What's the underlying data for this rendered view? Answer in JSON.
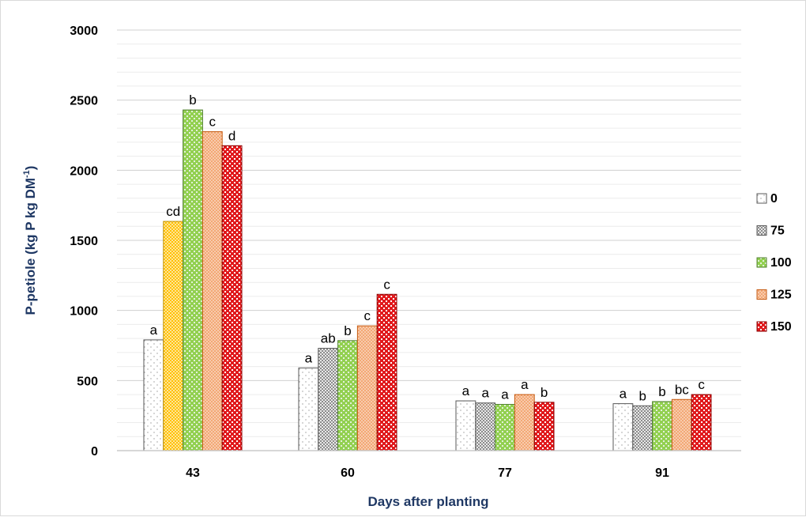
{
  "chart_data": {
    "type": "bar",
    "title": "",
    "xlabel": "Days after planting",
    "ylabel": "P-petiole (kg P kg DM",
    "ylabel_superscript": "-1",
    "ylabel_close": ")",
    "ylim": [
      0,
      3000
    ],
    "ytick_values": [
      0,
      500,
      1000,
      1500,
      2000,
      2500,
      3000
    ],
    "ytick_labels": [
      "0",
      "500",
      "1000",
      "1500",
      "2000",
      "2500",
      "3000"
    ],
    "minor_grid_step": 100,
    "grid": true,
    "legend_position": "right",
    "categories": [
      "43",
      "60",
      "77",
      "91"
    ],
    "series": [
      {
        "name": "0",
        "color": "#ffffff",
        "pattern": "sparse-dots",
        "values": [
          790,
          590,
          355,
          335
        ],
        "labels": [
          "a",
          "a",
          "a",
          "a"
        ]
      },
      {
        "name": "75",
        "color": "#d0d0d0",
        "pattern": "checker-gray",
        "values": [
          1635,
          730,
          340,
          320
        ],
        "labels": [
          "cd",
          "ab",
          "a",
          "b"
        ]
      },
      {
        "name": "100",
        "color": "#92d050",
        "pattern": "checker-green",
        "values": [
          2430,
          785,
          330,
          350
        ],
        "labels": [
          "b",
          "b",
          "a",
          "b"
        ]
      },
      {
        "name": "125",
        "color": "#f4b183",
        "pattern": "dotted-orange",
        "values": [
          2275,
          890,
          400,
          365
        ],
        "labels": [
          "c",
          "c",
          "a",
          "bc"
        ]
      },
      {
        "name": "150",
        "color": "#e0191c",
        "pattern": "checker-red",
        "values": [
          2175,
          1115,
          345,
          400
        ],
        "labels": [
          "d",
          "c",
          "b",
          "c"
        ]
      }
    ],
    "category_43_series_75_color": "#ffd966"
  }
}
